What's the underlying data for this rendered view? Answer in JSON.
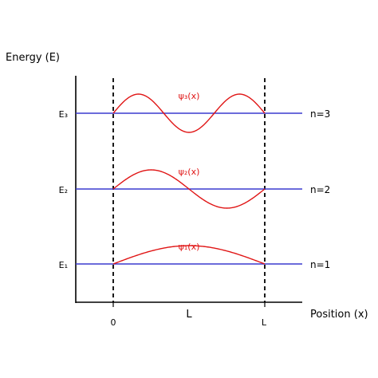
{
  "y_axis_label": "Energy (E)",
  "x_axis_label": "Position (x)",
  "x_ticks": {
    "left": "0",
    "right": "L",
    "middle": "L"
  },
  "colors": {
    "level_line": "#3a3acf",
    "wavefunction": "#e01515",
    "axis": "#000000",
    "well_wall": "#000000"
  },
  "levels": [
    {
      "energy_label": "E₁",
      "n_label": "n=1",
      "wave_label": "ψ₁(x)",
      "n": 1
    },
    {
      "energy_label": "E₂",
      "n_label": "n=2",
      "wave_label": "ψ₂(x)",
      "n": 2
    },
    {
      "energy_label": "E₃",
      "n_label": "n=3",
      "wave_label": "ψ₃(x)",
      "n": 3
    }
  ]
}
